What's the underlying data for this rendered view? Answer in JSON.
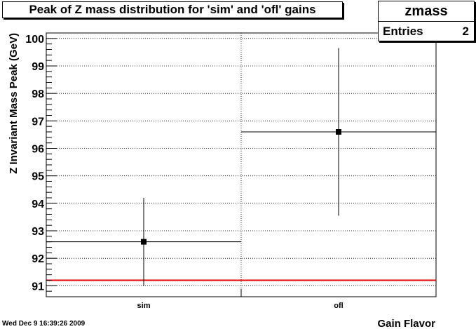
{
  "title": "Peak of Z mass distribution for 'sim' and 'ofl' gains",
  "stats": {
    "name": "zmass",
    "entries_label": "Entries",
    "entries_value": "2"
  },
  "timestamp": "Wed Dec  9 16:39:26 2009",
  "colors": {
    "reference_line": "#e00000",
    "markers": "#000000"
  },
  "chart_data": {
    "type": "scatter",
    "title": "Peak of Z mass distribution for 'sim' and 'ofl' gains",
    "xlabel": "Gain Flavor",
    "ylabel": "Z Invariant Mass Peak (GeV)",
    "categories": [
      "sim",
      "ofl"
    ],
    "values": [
      92.6,
      96.6
    ],
    "errors": [
      1.6,
      3.05
    ],
    "ylim": [
      90.6,
      100.2
    ],
    "yticks": [
      91,
      92,
      93,
      94,
      95,
      96,
      97,
      98,
      99,
      100
    ],
    "reference_line": 91.2,
    "grid": true
  }
}
